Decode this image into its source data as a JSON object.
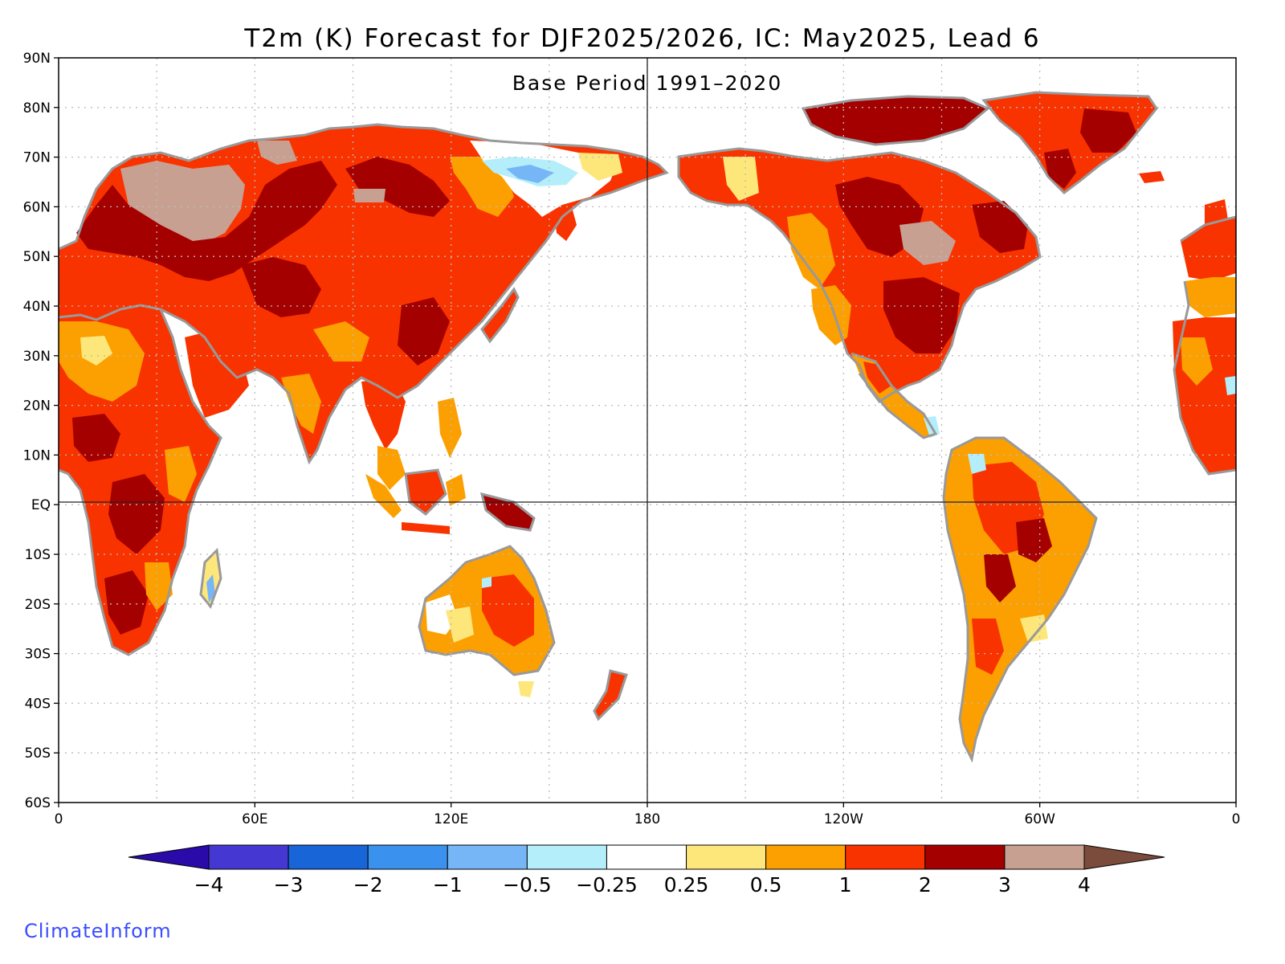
{
  "title": "T2m (K) Forecast for DJF2025/2026, IC: May2025, Lead 6",
  "subtitle": "Base Period 1991–2020",
  "credit": "ClimateInform",
  "map": {
    "projection": "equirectangular, Pacific-centered (0° to 360° longitude)",
    "lon_range": [
      0,
      360
    ],
    "lat_range": [
      -60,
      90
    ],
    "y_tick_labels": [
      "90N",
      "80N",
      "70N",
      "60N",
      "50N",
      "40N",
      "30N",
      "20N",
      "10N",
      "EQ",
      "10S",
      "20S",
      "30S",
      "40S",
      "50S",
      "60S"
    ],
    "x_tick_labels": [
      "0",
      "60E",
      "120E",
      "180",
      "120W",
      "60W",
      "0"
    ],
    "coastline_color": "#999999",
    "grid": "dotted"
  },
  "colorbar": {
    "labels": [
      "−4",
      "−3",
      "−2",
      "−1",
      "−0.5",
      "−0.25",
      "0.25",
      "0.5",
      "1",
      "2",
      "3",
      "4"
    ],
    "colors": [
      "#2a0aa8",
      "#4537d2",
      "#1765d6",
      "#3a92ee",
      "#76b6f7",
      "#b4eefb",
      "#ffffff",
      "#fde77b",
      "#fba000",
      "#f93300",
      "#a50000",
      "#c8a092",
      "#7b4b3b"
    ]
  },
  "regions": [
    {
      "name": "Europe & northern Russia",
      "level": "3-4"
    },
    {
      "name": "Siberia",
      "level": "2-3"
    },
    {
      "name": "Eastern Siberia (Yakutia)",
      "level": "-1 to -0.25"
    },
    {
      "name": "Africa",
      "level": "1-3"
    },
    {
      "name": "Australia",
      "level": "0.25-2"
    },
    {
      "name": "Eastern United States",
      "level": "2-3"
    },
    {
      "name": "Canada & Alaska",
      "level": "1-4"
    },
    {
      "name": "Greenland",
      "level": "2-3"
    },
    {
      "name": "South America",
      "level": "0.25-3"
    }
  ]
}
